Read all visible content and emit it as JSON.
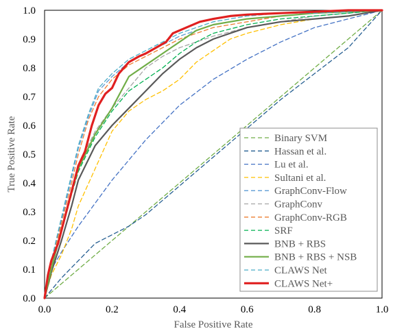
{
  "chart_data": {
    "type": "line",
    "title": "",
    "xlabel": "False Positive Rate",
    "ylabel": "True Positive Rate",
    "xlim": [
      0,
      1
    ],
    "ylim": [
      0,
      1
    ],
    "xticks": [
      "0.0",
      "0.2",
      "0.4",
      "0.6",
      "0.8",
      "1.0"
    ],
    "yticks": [
      "0.0",
      "0.1",
      "0.2",
      "0.3",
      "0.4",
      "0.5",
      "0.6",
      "0.7",
      "0.8",
      "0.9",
      "1.0"
    ],
    "grid": false,
    "legend_position": "bottom-right",
    "series": [
      {
        "name": "Binary SVM",
        "color": "#70ad47",
        "dash": true,
        "width": 1.3,
        "points": [
          [
            0,
            0
          ],
          [
            0.1,
            0.1
          ],
          [
            0.2,
            0.2
          ],
          [
            0.3,
            0.3
          ],
          [
            0.4,
            0.4
          ],
          [
            0.5,
            0.5
          ],
          [
            0.6,
            0.6
          ],
          [
            0.7,
            0.7
          ],
          [
            0.8,
            0.8
          ],
          [
            0.9,
            0.9
          ],
          [
            1,
            1
          ]
        ]
      },
      {
        "name": "Hassan et al.",
        "color": "#255e91",
        "dash": true,
        "width": 1.3,
        "points": [
          [
            0,
            0
          ],
          [
            0.05,
            0.07
          ],
          [
            0.1,
            0.13
          ],
          [
            0.15,
            0.19
          ],
          [
            0.2,
            0.22
          ],
          [
            0.25,
            0.25
          ],
          [
            0.3,
            0.29
          ],
          [
            0.4,
            0.39
          ],
          [
            0.5,
            0.49
          ],
          [
            0.6,
            0.59
          ],
          [
            0.7,
            0.69
          ],
          [
            0.8,
            0.78
          ],
          [
            0.9,
            0.87
          ],
          [
            1,
            1
          ]
        ]
      },
      {
        "name": "Lu et al.",
        "color": "#4472c4",
        "dash": true,
        "width": 1.3,
        "points": [
          [
            0,
            0
          ],
          [
            0.02,
            0.1
          ],
          [
            0.05,
            0.16
          ],
          [
            0.1,
            0.25
          ],
          [
            0.15,
            0.33
          ],
          [
            0.2,
            0.41
          ],
          [
            0.3,
            0.55
          ],
          [
            0.4,
            0.67
          ],
          [
            0.5,
            0.76
          ],
          [
            0.6,
            0.83
          ],
          [
            0.7,
            0.89
          ],
          [
            0.8,
            0.94
          ],
          [
            0.9,
            0.97
          ],
          [
            1,
            1
          ]
        ]
      },
      {
        "name": "Sultani et al.",
        "color": "#ffc000",
        "dash": true,
        "width": 1.3,
        "points": [
          [
            0,
            0
          ],
          [
            0.02,
            0.08
          ],
          [
            0.05,
            0.15
          ],
          [
            0.08,
            0.24
          ],
          [
            0.1,
            0.32
          ],
          [
            0.15,
            0.45
          ],
          [
            0.2,
            0.58
          ],
          [
            0.25,
            0.65
          ],
          [
            0.3,
            0.69
          ],
          [
            0.35,
            0.72
          ],
          [
            0.4,
            0.76
          ],
          [
            0.45,
            0.82
          ],
          [
            0.5,
            0.86
          ],
          [
            0.55,
            0.9
          ],
          [
            0.6,
            0.92
          ],
          [
            0.7,
            0.95
          ],
          [
            0.8,
            0.97
          ],
          [
            0.9,
            0.98
          ],
          [
            1,
            1
          ]
        ]
      },
      {
        "name": "GraphConv-Flow",
        "color": "#5b9bd5",
        "dash": true,
        "width": 1.3,
        "points": [
          [
            0,
            0
          ],
          [
            0.02,
            0.12
          ],
          [
            0.05,
            0.27
          ],
          [
            0.08,
            0.42
          ],
          [
            0.1,
            0.52
          ],
          [
            0.13,
            0.63
          ],
          [
            0.16,
            0.72
          ],
          [
            0.2,
            0.77
          ],
          [
            0.25,
            0.82
          ],
          [
            0.3,
            0.85
          ],
          [
            0.35,
            0.88
          ],
          [
            0.4,
            0.91
          ],
          [
            0.5,
            0.95
          ],
          [
            0.6,
            0.97
          ],
          [
            0.7,
            0.98
          ],
          [
            0.8,
            0.99
          ],
          [
            1,
            1
          ]
        ]
      },
      {
        "name": "GraphConv",
        "color": "#a5a5a5",
        "dash": true,
        "width": 1.3,
        "points": [
          [
            0,
            0
          ],
          [
            0.02,
            0.11
          ],
          [
            0.05,
            0.24
          ],
          [
            0.08,
            0.38
          ],
          [
            0.1,
            0.46
          ],
          [
            0.15,
            0.58
          ],
          [
            0.2,
            0.66
          ],
          [
            0.25,
            0.73
          ],
          [
            0.3,
            0.8
          ],
          [
            0.35,
            0.84
          ],
          [
            0.4,
            0.87
          ],
          [
            0.5,
            0.91
          ],
          [
            0.6,
            0.94
          ],
          [
            0.7,
            0.96
          ],
          [
            0.8,
            0.98
          ],
          [
            0.9,
            0.99
          ],
          [
            1,
            1
          ]
        ]
      },
      {
        "name": "GraphConv-RGB",
        "color": "#ed7d31",
        "dash": true,
        "width": 1.3,
        "points": [
          [
            0,
            0
          ],
          [
            0.02,
            0.12
          ],
          [
            0.05,
            0.26
          ],
          [
            0.08,
            0.4
          ],
          [
            0.1,
            0.5
          ],
          [
            0.13,
            0.62
          ],
          [
            0.16,
            0.7
          ],
          [
            0.2,
            0.76
          ],
          [
            0.25,
            0.81
          ],
          [
            0.3,
            0.84
          ],
          [
            0.35,
            0.87
          ],
          [
            0.4,
            0.9
          ],
          [
            0.5,
            0.94
          ],
          [
            0.6,
            0.96
          ],
          [
            0.7,
            0.98
          ],
          [
            0.8,
            0.99
          ],
          [
            1,
            1
          ]
        ]
      },
      {
        "name": "SRF",
        "color": "#00b050",
        "dash": true,
        "width": 1.3,
        "points": [
          [
            0,
            0
          ],
          [
            0.02,
            0.1
          ],
          [
            0.05,
            0.23
          ],
          [
            0.08,
            0.36
          ],
          [
            0.1,
            0.44
          ],
          [
            0.15,
            0.56
          ],
          [
            0.2,
            0.65
          ],
          [
            0.25,
            0.72
          ],
          [
            0.3,
            0.76
          ],
          [
            0.35,
            0.8
          ],
          [
            0.4,
            0.85
          ],
          [
            0.45,
            0.89
          ],
          [
            0.5,
            0.92
          ],
          [
            0.6,
            0.95
          ],
          [
            0.7,
            0.97
          ],
          [
            0.8,
            0.98
          ],
          [
            0.9,
            0.99
          ],
          [
            1,
            1
          ]
        ]
      },
      {
        "name": "BNB + RBS",
        "color": "#595959",
        "dash": false,
        "width": 2.2,
        "points": [
          [
            0,
            0
          ],
          [
            0.02,
            0.09
          ],
          [
            0.05,
            0.2
          ],
          [
            0.08,
            0.32
          ],
          [
            0.1,
            0.41
          ],
          [
            0.15,
            0.53
          ],
          [
            0.2,
            0.6
          ],
          [
            0.25,
            0.66
          ],
          [
            0.3,
            0.72
          ],
          [
            0.35,
            0.78
          ],
          [
            0.4,
            0.83
          ],
          [
            0.45,
            0.87
          ],
          [
            0.5,
            0.9
          ],
          [
            0.55,
            0.92
          ],
          [
            0.6,
            0.94
          ],
          [
            0.7,
            0.96
          ],
          [
            0.8,
            0.97
          ],
          [
            0.9,
            0.98
          ],
          [
            0.95,
            0.99
          ],
          [
            1,
            1
          ]
        ]
      },
      {
        "name": "BNB + RBS + NSB",
        "color": "#70ad47",
        "dash": false,
        "width": 2.2,
        "points": [
          [
            0,
            0
          ],
          [
            0.02,
            0.1
          ],
          [
            0.05,
            0.24
          ],
          [
            0.08,
            0.37
          ],
          [
            0.1,
            0.45
          ],
          [
            0.15,
            0.57
          ],
          [
            0.2,
            0.66
          ],
          [
            0.25,
            0.77
          ],
          [
            0.3,
            0.81
          ],
          [
            0.35,
            0.85
          ],
          [
            0.4,
            0.89
          ],
          [
            0.45,
            0.93
          ],
          [
            0.5,
            0.95
          ],
          [
            0.6,
            0.97
          ],
          [
            0.7,
            0.98
          ],
          [
            0.8,
            0.99
          ],
          [
            1,
            1
          ]
        ]
      },
      {
        "name": "CLAWS Net",
        "color": "#4bacc6",
        "dash": true,
        "width": 1.3,
        "points": [
          [
            0,
            0
          ],
          [
            0.02,
            0.13
          ],
          [
            0.05,
            0.28
          ],
          [
            0.08,
            0.43
          ],
          [
            0.1,
            0.53
          ],
          [
            0.13,
            0.64
          ],
          [
            0.16,
            0.73
          ],
          [
            0.2,
            0.78
          ],
          [
            0.25,
            0.83
          ],
          [
            0.3,
            0.86
          ],
          [
            0.35,
            0.89
          ],
          [
            0.4,
            0.92
          ],
          [
            0.5,
            0.96
          ],
          [
            0.6,
            0.98
          ],
          [
            0.7,
            0.99
          ],
          [
            0.8,
            0.99
          ],
          [
            1,
            1
          ]
        ]
      },
      {
        "name": "CLAWS Net+",
        "color": "#e02020",
        "dash": false,
        "width": 3.2,
        "points": [
          [
            0,
            0
          ],
          [
            0.01,
            0.08
          ],
          [
            0.02,
            0.13
          ],
          [
            0.04,
            0.19
          ],
          [
            0.06,
            0.28
          ],
          [
            0.08,
            0.37
          ],
          [
            0.1,
            0.46
          ],
          [
            0.12,
            0.51
          ],
          [
            0.14,
            0.6
          ],
          [
            0.16,
            0.67
          ],
          [
            0.18,
            0.71
          ],
          [
            0.2,
            0.73
          ],
          [
            0.22,
            0.78
          ],
          [
            0.25,
            0.82
          ],
          [
            0.28,
            0.84
          ],
          [
            0.3,
            0.85
          ],
          [
            0.33,
            0.87
          ],
          [
            0.36,
            0.89
          ],
          [
            0.38,
            0.92
          ],
          [
            0.42,
            0.94
          ],
          [
            0.46,
            0.96
          ],
          [
            0.5,
            0.97
          ],
          [
            0.55,
            0.98
          ],
          [
            0.6,
            0.985
          ],
          [
            0.7,
            0.99
          ],
          [
            0.8,
            0.995
          ],
          [
            0.9,
            1
          ],
          [
            1,
            1
          ]
        ]
      }
    ]
  }
}
